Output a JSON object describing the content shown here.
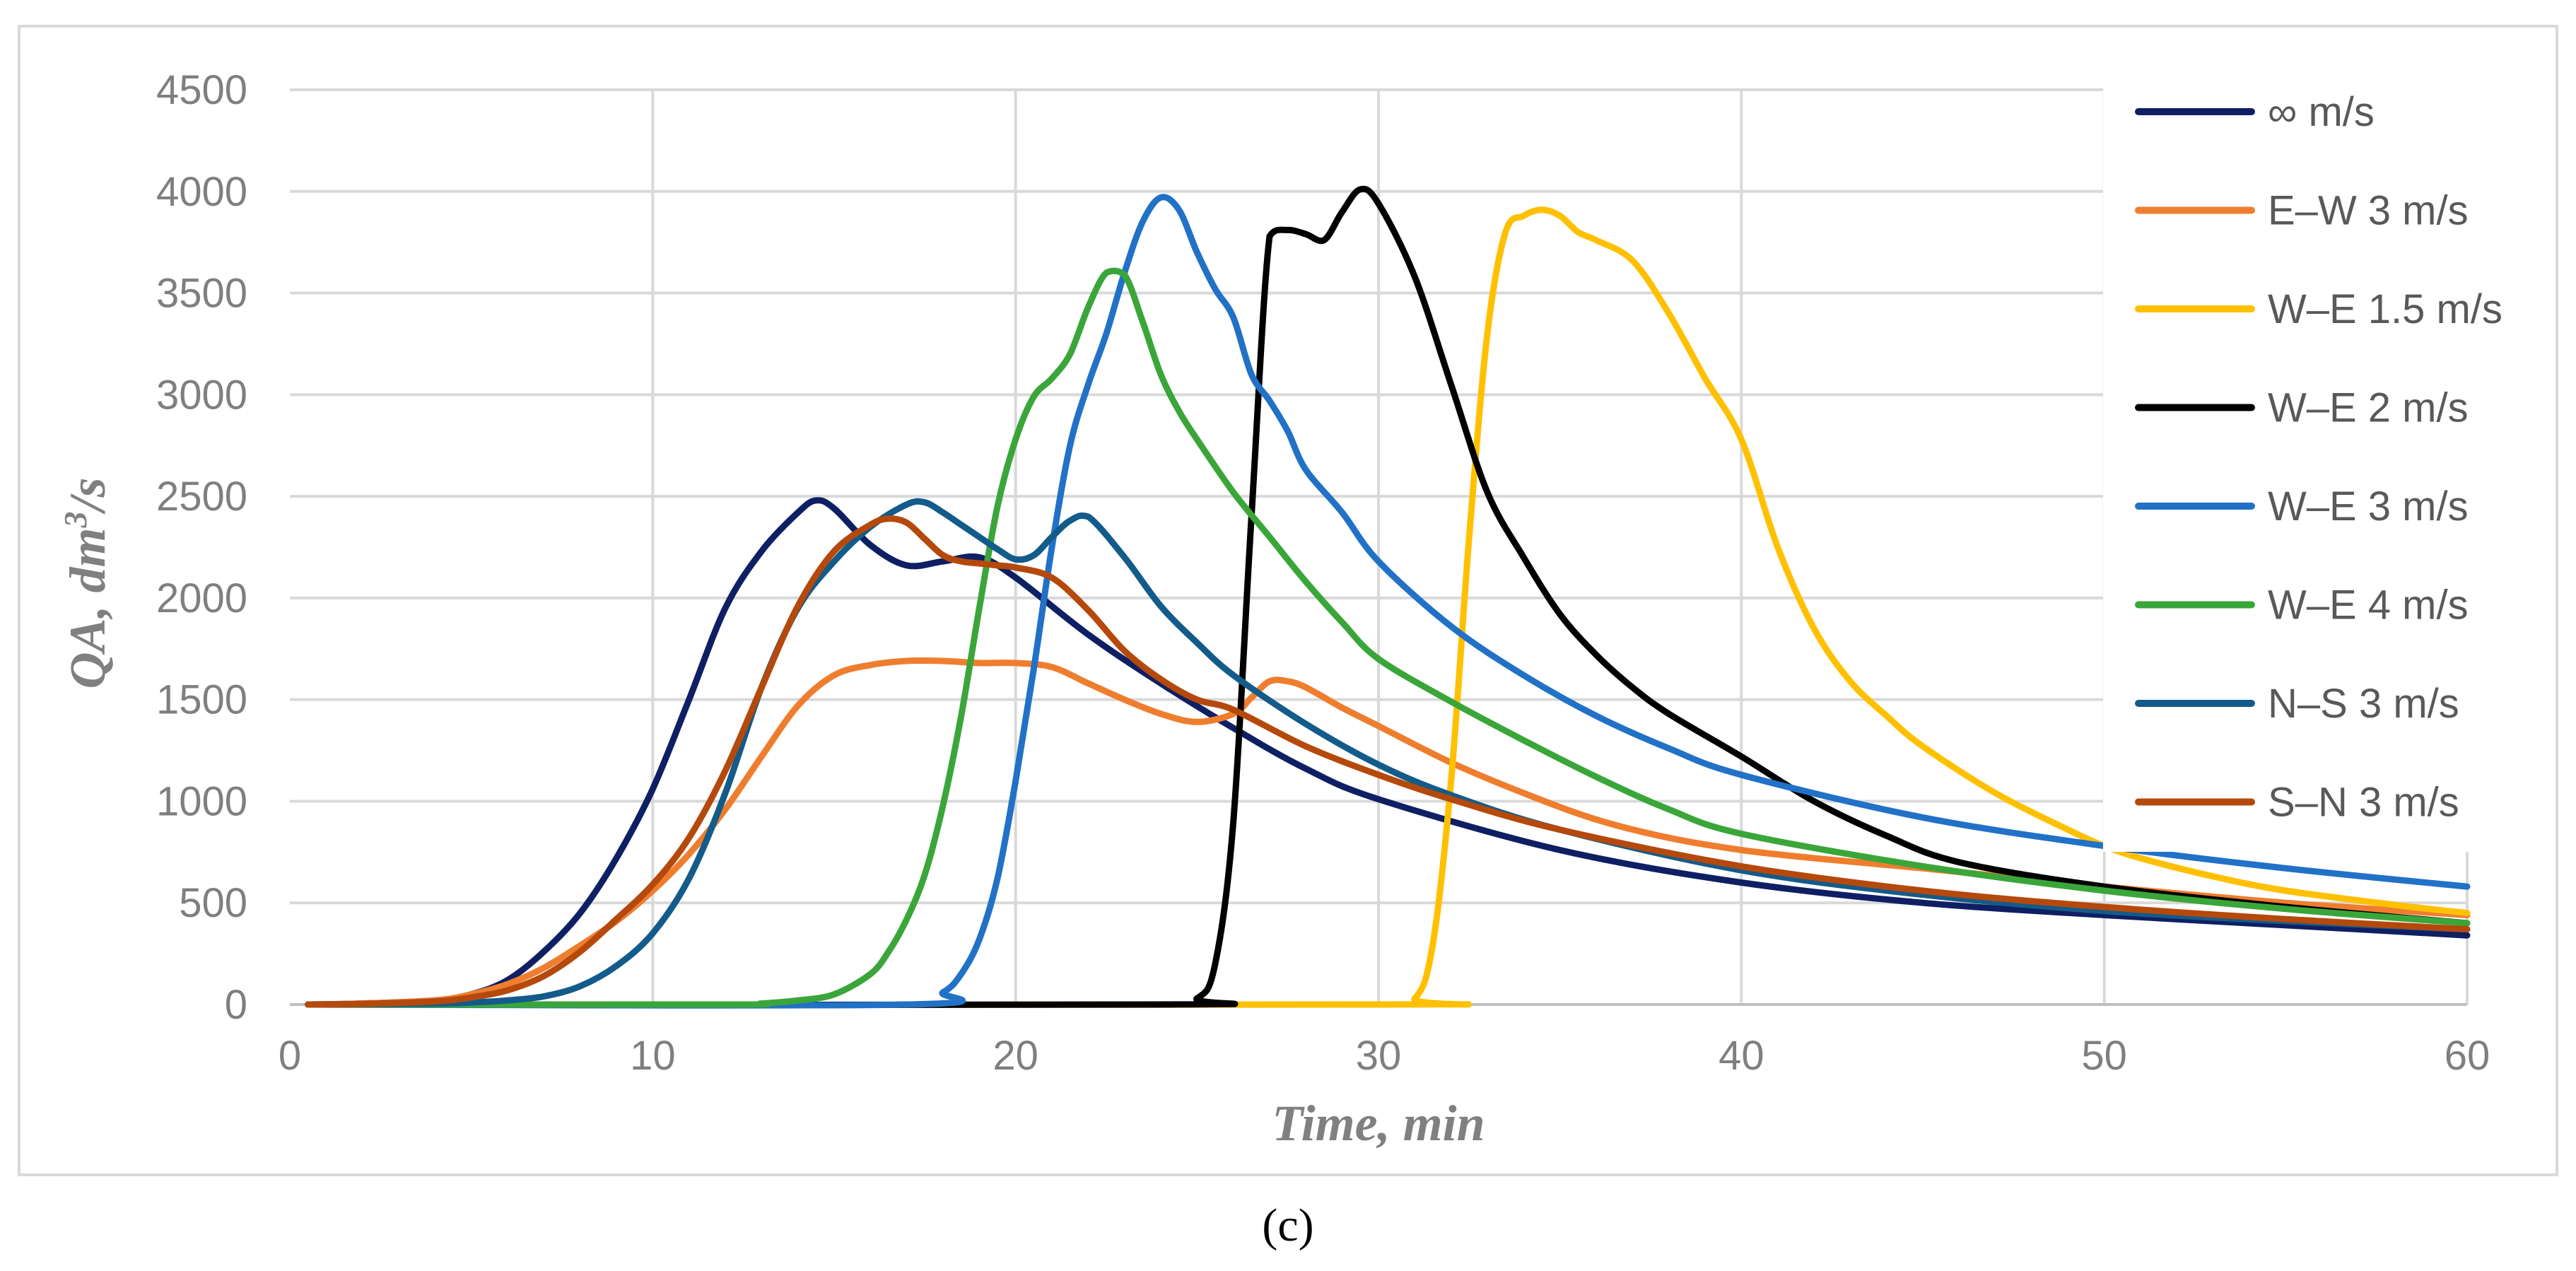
{
  "chart_data": {
    "type": "line",
    "panel_label": "(c)",
    "xlabel": "Time, min",
    "ylabel_main": "QA, dm",
    "ylabel_sup": "3",
    "ylabel_tail": "/s",
    "xlim": [
      0,
      60
    ],
    "ylim": [
      0,
      4500
    ],
    "x_ticks": [
      0,
      10,
      20,
      30,
      40,
      50,
      60
    ],
    "y_ticks": [
      0,
      500,
      1000,
      1500,
      2000,
      2500,
      3000,
      3500,
      4000,
      4500
    ],
    "grid": true,
    "legend_position": "right",
    "series": [
      {
        "name": "∞ m/s",
        "color": "#0f1f63",
        "x": [
          0.5,
          2,
          4,
          5,
          6,
          7,
          8,
          9,
          10,
          11,
          12,
          13,
          14,
          14.5,
          15,
          16,
          17,
          18,
          19,
          20,
          22,
          24,
          26,
          28,
          30,
          35,
          40,
          45,
          50,
          55,
          60
        ],
        "y": [
          0,
          5,
          20,
          50,
          120,
          260,
          450,
          720,
          1060,
          1500,
          1950,
          2230,
          2420,
          2480,
          2440,
          2260,
          2160,
          2180,
          2200,
          2100,
          1820,
          1580,
          1360,
          1160,
          1010,
          760,
          600,
          500,
          440,
          390,
          340
        ]
      },
      {
        "name": "E–W 3 m/s",
        "color": "#ef7d2e",
        "x": [
          0.5,
          2,
          4,
          5,
          6,
          7,
          8,
          9,
          10,
          11,
          12,
          13,
          14,
          15,
          16,
          17,
          18,
          19,
          20,
          21,
          22,
          23,
          24,
          25,
          26,
          26.5,
          27,
          27.5,
          28,
          29,
          30,
          32,
          34,
          36,
          38,
          40,
          42,
          45,
          50,
          55,
          60
        ],
        "y": [
          0,
          5,
          20,
          50,
          100,
          180,
          290,
          410,
          560,
          740,
          960,
          1220,
          1470,
          1620,
          1670,
          1690,
          1690,
          1680,
          1680,
          1660,
          1580,
          1500,
          1430,
          1390,
          1430,
          1510,
          1590,
          1590,
          1560,
          1460,
          1370,
          1190,
          1040,
          910,
          820,
          760,
          720,
          670,
          580,
          500,
          440
        ]
      },
      {
        "name": "W–E 1.5 m/s",
        "color": "#ffc000",
        "x": [
          0.5,
          30,
          31,
          31.5,
          32,
          32.5,
          33,
          33.5,
          34,
          34.5,
          35,
          35.5,
          36,
          37,
          38,
          39,
          40,
          41,
          42,
          43,
          44,
          45,
          47,
          49,
          50,
          51,
          53,
          55,
          58,
          60
        ],
        "y": [
          0,
          0,
          30,
          300,
          1100,
          2300,
          3300,
          3800,
          3880,
          3910,
          3880,
          3800,
          3760,
          3660,
          3400,
          3080,
          2780,
          2250,
          1850,
          1590,
          1420,
          1270,
          1040,
          860,
          780,
          720,
          630,
          560,
          490,
          450
        ]
      },
      {
        "name": "W–E 2 m/s",
        "color": "#000000",
        "x": [
          0.5,
          24,
          25,
          25.5,
          26,
          26.5,
          27,
          27.5,
          28,
          28.5,
          29,
          29.5,
          30,
          31,
          32,
          33,
          34,
          35,
          36,
          37,
          38,
          40,
          42,
          44,
          46,
          50,
          55,
          60
        ],
        "y": [
          0,
          0,
          30,
          200,
          900,
          2400,
          3780,
          3810,
          3790,
          3760,
          3900,
          4010,
          3940,
          3580,
          3050,
          2520,
          2200,
          1920,
          1720,
          1560,
          1430,
          1220,
          1000,
          830,
          700,
          580,
          480,
          400
        ]
      },
      {
        "name": "W–E 3 m/s",
        "color": "#2171c7",
        "x": [
          0.5,
          17,
          18,
          18.5,
          19,
          19.5,
          20,
          20.5,
          21,
          21.5,
          22,
          22.5,
          23,
          23.5,
          24,
          24.5,
          25,
          25.5,
          26,
          26.5,
          27,
          27.5,
          28,
          29,
          30,
          32,
          34,
          36,
          38,
          40,
          45,
          50,
          55,
          60
        ],
        "y": [
          0,
          0,
          60,
          150,
          320,
          620,
          1100,
          1650,
          2250,
          2750,
          3050,
          3300,
          3600,
          3850,
          3970,
          3910,
          3700,
          3520,
          3380,
          3100,
          2970,
          2820,
          2630,
          2420,
          2180,
          1860,
          1620,
          1420,
          1260,
          1130,
          920,
          780,
          670,
          580
        ]
      },
      {
        "name": "W–E 4 m/s",
        "color": "#3aa63a",
        "x": [
          0.5,
          12,
          13,
          14,
          15,
          16,
          16.5,
          17,
          17.5,
          18,
          18.5,
          19,
          19.5,
          20,
          20.5,
          21,
          21.5,
          22,
          22.5,
          23,
          23.5,
          24,
          24.5,
          25,
          26,
          27,
          28,
          29,
          30,
          32,
          34,
          36,
          38,
          40,
          45,
          50,
          55,
          60
        ],
        "y": [
          0,
          0,
          5,
          20,
          50,
          150,
          260,
          420,
          640,
          980,
          1420,
          1950,
          2450,
          2780,
          2990,
          3080,
          3200,
          3430,
          3600,
          3590,
          3360,
          3100,
          2920,
          2780,
          2520,
          2300,
          2080,
          1880,
          1700,
          1490,
          1300,
          1120,
          960,
          840,
          680,
          560,
          470,
          400
        ]
      },
      {
        "name": "N–S 3 m/s",
        "color": "#135b8a",
        "x": [
          0.5,
          4,
          5,
          6,
          7,
          8,
          9,
          10,
          11,
          12,
          13,
          14,
          15,
          16,
          17,
          17.5,
          18,
          18.5,
          19,
          19.5,
          20,
          20.5,
          21,
          21.5,
          22,
          23,
          24,
          25,
          26,
          28,
          30,
          32,
          35,
          40,
          45,
          50,
          55,
          60
        ],
        "y": [
          0,
          5,
          10,
          20,
          40,
          90,
          190,
          350,
          620,
          1040,
          1560,
          1950,
          2180,
          2350,
          2460,
          2470,
          2420,
          2360,
          2300,
          2240,
          2190,
          2210,
          2300,
          2380,
          2400,
          2200,
          1960,
          1780,
          1620,
          1380,
          1180,
          1030,
          860,
          660,
          540,
          460,
          410,
          370
        ]
      },
      {
        "name": "S–N 3 m/s",
        "color": "#b5490c",
        "x": [
          0.5,
          2,
          4,
          5,
          6,
          7,
          8,
          9,
          10,
          11,
          12,
          13,
          14,
          15,
          16,
          16.5,
          17,
          17.5,
          18,
          18.5,
          19,
          19.5,
          20,
          21,
          22,
          23,
          24,
          25,
          26,
          28,
          30,
          32,
          35,
          40,
          45,
          50,
          55,
          60
        ],
        "y": [
          0,
          3,
          15,
          35,
          70,
          140,
          260,
          420,
          590,
          820,
          1150,
          1560,
          1960,
          2230,
          2360,
          2390,
          2370,
          2290,
          2210,
          2180,
          2170,
          2160,
          2150,
          2100,
          1940,
          1740,
          1600,
          1500,
          1450,
          1270,
          1130,
          1010,
          860,
          680,
          560,
          480,
          420,
          370
        ]
      }
    ]
  }
}
